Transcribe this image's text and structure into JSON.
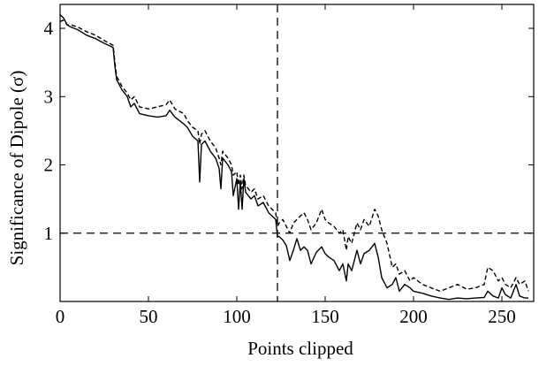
{
  "chart_data": {
    "type": "line",
    "title": "",
    "xlabel": "Points clipped",
    "ylabel": "Significance of Dipole (σ)",
    "xlim": [
      0,
      268
    ],
    "ylim": [
      0,
      4.35
    ],
    "grid": false,
    "x_ticks": [
      "0",
      "50",
      "100",
      "150",
      "200",
      "250"
    ],
    "x_tick_values": [
      0,
      50,
      100,
      150,
      200,
      250
    ],
    "y_ticks": [
      "1",
      "2",
      "3",
      "4"
    ],
    "y_tick_values": [
      1,
      2,
      3,
      4
    ],
    "reference_lines": [
      {
        "orientation": "vertical",
        "value": 123,
        "style": "dashed"
      },
      {
        "orientation": "horizontal",
        "value": 1,
        "style": "dashed"
      }
    ],
    "series": [
      {
        "style": "solid",
        "x": [
          0,
          2,
          4,
          6,
          10,
          15,
          20,
          25,
          30,
          31,
          32,
          35,
          38,
          40,
          42,
          45,
          50,
          55,
          60,
          62,
          65,
          70,
          72,
          75,
          78,
          79,
          80,
          82,
          85,
          88,
          90,
          91,
          92,
          95,
          97,
          98,
          100,
          101,
          102,
          103,
          104,
          105,
          108,
          110,
          112,
          115,
          118,
          120,
          122,
          123,
          124,
          126,
          128,
          130,
          132,
          134,
          136,
          138,
          140,
          142,
          145,
          148,
          150,
          152,
          155,
          158,
          160,
          162,
          163,
          165,
          168,
          170,
          172,
          175,
          178,
          180,
          182,
          185,
          188,
          190,
          192,
          195,
          198,
          200,
          205,
          210,
          215,
          220,
          225,
          230,
          235,
          240,
          242,
          245,
          248,
          250,
          252,
          255,
          258,
          260,
          263,
          265
        ],
        "y": [
          4.2,
          4.15,
          4.05,
          4.02,
          3.98,
          3.9,
          3.85,
          3.78,
          3.72,
          3.45,
          3.25,
          3.1,
          3.0,
          2.85,
          2.9,
          2.75,
          2.72,
          2.7,
          2.72,
          2.8,
          2.7,
          2.6,
          2.55,
          2.42,
          2.35,
          1.75,
          2.3,
          2.35,
          2.2,
          2.1,
          1.95,
          1.65,
          2.1,
          2.0,
          1.9,
          1.55,
          1.8,
          1.35,
          1.75,
          1.35,
          1.8,
          1.6,
          1.5,
          1.55,
          1.4,
          1.45,
          1.3,
          1.25,
          1.2,
          0.95,
          0.95,
          0.9,
          0.82,
          0.6,
          0.75,
          0.92,
          0.75,
          0.8,
          0.75,
          0.55,
          0.72,
          0.8,
          0.7,
          0.65,
          0.6,
          0.45,
          0.55,
          0.3,
          0.55,
          0.45,
          0.75,
          0.55,
          0.7,
          0.75,
          0.85,
          0.65,
          0.35,
          0.2,
          0.25,
          0.35,
          0.15,
          0.25,
          0.2,
          0.15,
          0.12,
          0.08,
          0.05,
          0.03,
          0.05,
          0.04,
          0.05,
          0.06,
          0.15,
          0.08,
          0.05,
          0.2,
          0.1,
          0.05,
          0.25,
          0.08,
          0.05,
          0.05
        ]
      },
      {
        "style": "dashed",
        "x": [
          0,
          2,
          4,
          6,
          10,
          15,
          20,
          25,
          30,
          31,
          32,
          35,
          38,
          40,
          42,
          45,
          50,
          55,
          60,
          62,
          65,
          70,
          72,
          75,
          78,
          79,
          80,
          82,
          85,
          88,
          90,
          91,
          92,
          95,
          97,
          98,
          100,
          101,
          102,
          103,
          104,
          105,
          108,
          110,
          112,
          115,
          118,
          120,
          122,
          123,
          124,
          126,
          128,
          130,
          132,
          134,
          136,
          138,
          140,
          142,
          145,
          148,
          150,
          152,
          155,
          158,
          160,
          162,
          163,
          165,
          168,
          170,
          172,
          175,
          178,
          180,
          182,
          185,
          188,
          190,
          192,
          195,
          198,
          200,
          205,
          210,
          215,
          220,
          225,
          230,
          235,
          240,
          242,
          245,
          248,
          250,
          252,
          255,
          258,
          260,
          263,
          265
        ],
        "y": [
          4.1,
          4.12,
          4.05,
          4.05,
          4.02,
          3.95,
          3.9,
          3.82,
          3.75,
          3.5,
          3.3,
          3.15,
          3.05,
          2.95,
          3.0,
          2.85,
          2.82,
          2.85,
          2.88,
          2.95,
          2.82,
          2.75,
          2.65,
          2.55,
          2.5,
          2.3,
          2.45,
          2.5,
          2.35,
          2.25,
          2.1,
          2.0,
          2.2,
          2.1,
          2.0,
          1.85,
          1.9,
          1.7,
          1.85,
          1.65,
          1.85,
          1.7,
          1.6,
          1.65,
          1.5,
          1.55,
          1.4,
          1.35,
          1.3,
          1.1,
          1.15,
          1.2,
          1.1,
          1.0,
          1.15,
          1.2,
          1.25,
          1.3,
          1.2,
          1.05,
          1.15,
          1.35,
          1.2,
          1.15,
          1.1,
          1.0,
          1.05,
          0.75,
          0.95,
          0.85,
          1.15,
          1.05,
          1.2,
          1.1,
          1.35,
          1.25,
          1.05,
          0.85,
          0.5,
          0.55,
          0.4,
          0.45,
          0.3,
          0.35,
          0.25,
          0.2,
          0.15,
          0.2,
          0.25,
          0.18,
          0.2,
          0.25,
          0.5,
          0.45,
          0.3,
          0.35,
          0.25,
          0.2,
          0.35,
          0.25,
          0.3,
          0.15
        ]
      }
    ]
  }
}
